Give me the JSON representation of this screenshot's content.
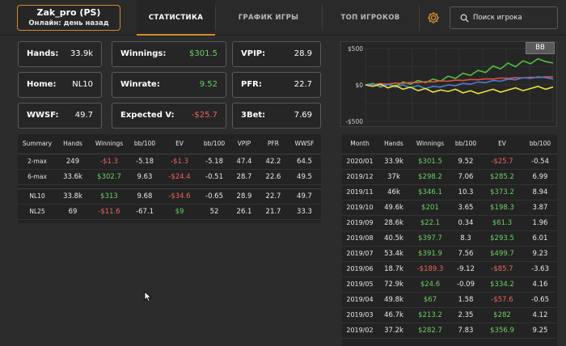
{
  "header": {
    "player_name": "Zak_pro (PS)",
    "player_status": "Онлайн: день назад",
    "tabs": [
      "СТАТИСТИКА",
      "ГРАФИК ИГРЫ",
      "ТОП ИГРОКОВ"
    ],
    "active_tab": "СТАТИСТИКА",
    "search_placeholder": "Поиск игрока",
    "accent_color": "#d08a2e"
  },
  "stats": {
    "hands": {
      "label": "Hands:",
      "value": "33.9k"
    },
    "winnings": {
      "label": "Winnings:",
      "value": "$301.5"
    },
    "vpip": {
      "label": "VPIP:",
      "value": "28.9"
    },
    "home": {
      "label": "Home:",
      "value": "NL10"
    },
    "winrate": {
      "label": "Winrate:",
      "value": "9.52"
    },
    "pfr": {
      "label": "PFR:",
      "value": "22.7"
    },
    "wwsf": {
      "label": "WWSF:",
      "value": "49.7"
    },
    "expected": {
      "label": "Expected V:",
      "value": "-$25.7"
    },
    "threebet": {
      "label": "3Bet:",
      "value": "7.69"
    }
  },
  "summary": {
    "columns": [
      "Summary",
      "Hands",
      "Winnings",
      "bb/100",
      "EV",
      "bb/100",
      "VPIP",
      "PFR",
      "WWSF"
    ],
    "rows": [
      [
        "2-max",
        "249",
        "-$1.3",
        "-5.18",
        "-$1.3",
        "-5.18",
        "47.4",
        "42.2",
        "64.5"
      ],
      [
        "6-max",
        "33.6k",
        "$302.7",
        "9.63",
        "-$24.4",
        "-0.51",
        "28.7",
        "22.6",
        "49.5"
      ],
      [
        "NL10",
        "33.8k",
        "$313",
        "9.68",
        "-$34.6",
        "-0.65",
        "28.9",
        "22.7",
        "49.7"
      ],
      [
        "NL25",
        "69",
        "-$11.6",
        "-67.1",
        "$9",
        "52",
        "26.1",
        "21.7",
        "33.3"
      ]
    ]
  },
  "chart_data": {
    "type": "line",
    "badge": "BB",
    "y_tick_labels": [
      "$500",
      "$0",
      "-$500"
    ],
    "ylim": [
      -500,
      500
    ],
    "series": [
      {
        "color": "#4fc23c",
        "values": [
          0,
          20,
          -30,
          10,
          -20,
          40,
          10,
          60,
          30,
          80,
          50,
          120,
          90,
          160,
          130,
          200,
          170,
          260,
          220,
          300,
          250,
          330,
          290,
          360,
          320,
          301
        ]
      },
      {
        "color": "#e0513c",
        "values": [
          0,
          5,
          15,
          10,
          25,
          20,
          35,
          30,
          45,
          40,
          55,
          50,
          65,
          60,
          75,
          70,
          85,
          80,
          95,
          90,
          100,
          95,
          105,
          100,
          110,
          110
        ]
      },
      {
        "color": "#4a7fd8",
        "values": [
          0,
          10,
          -20,
          5,
          -30,
          0,
          -40,
          -10,
          -50,
          -20,
          -30,
          0,
          -10,
          20,
          10,
          40,
          30,
          60,
          50,
          80,
          70,
          100,
          90,
          110,
          100,
          80
        ]
      },
      {
        "color": "#e8e23a",
        "values": [
          0,
          -20,
          10,
          -40,
          -10,
          -60,
          -30,
          -80,
          -50,
          -100,
          -70,
          -90,
          -60,
          -110,
          -80,
          -120,
          -90,
          -60,
          -100,
          -70,
          -40,
          -80,
          -50,
          -20,
          -60,
          -30
        ]
      }
    ]
  },
  "monthly": {
    "columns": [
      "Month",
      "Hands",
      "Winnings",
      "bb/100",
      "EV",
      "bb/100"
    ],
    "rows": [
      [
        "2020/01",
        "33.9k",
        "$301.5",
        "9.52",
        "-$25.7",
        "-0.54"
      ],
      [
        "2019/12",
        "37k",
        "$298.2",
        "7.06",
        "$285.2",
        "6.99"
      ],
      [
        "2019/11",
        "46k",
        "$346.1",
        "10.3",
        "$373.2",
        "8.94"
      ],
      [
        "2019/10",
        "49.6k",
        "$201",
        "3.65",
        "$198.3",
        "3.87"
      ],
      [
        "2019/09",
        "28.6k",
        "$22.1",
        "0.34",
        "$61.3",
        "1.96"
      ],
      [
        "2019/08",
        "40.5k",
        "$397.7",
        "8.3",
        "$293.5",
        "6.01"
      ],
      [
        "2019/07",
        "53.4k",
        "$391.9",
        "7.56",
        "$499.7",
        "9.23"
      ],
      [
        "2019/06",
        "18.7k",
        "-$189.3",
        "-9.12",
        "-$85.7",
        "-3.63"
      ],
      [
        "2019/05",
        "72.9k",
        "$24.6",
        "-0.09",
        "$334.2",
        "4.16"
      ],
      [
        "2019/04",
        "49.8k",
        "$67",
        "1.58",
        "-$57.6",
        "-0.65"
      ],
      [
        "2019/03",
        "46.7k",
        "$213.2",
        "2.35",
        "$282",
        "4.12"
      ],
      [
        "2019/02",
        "37.2k",
        "$282.7",
        "7.83",
        "$356.9",
        "9.25"
      ]
    ]
  }
}
